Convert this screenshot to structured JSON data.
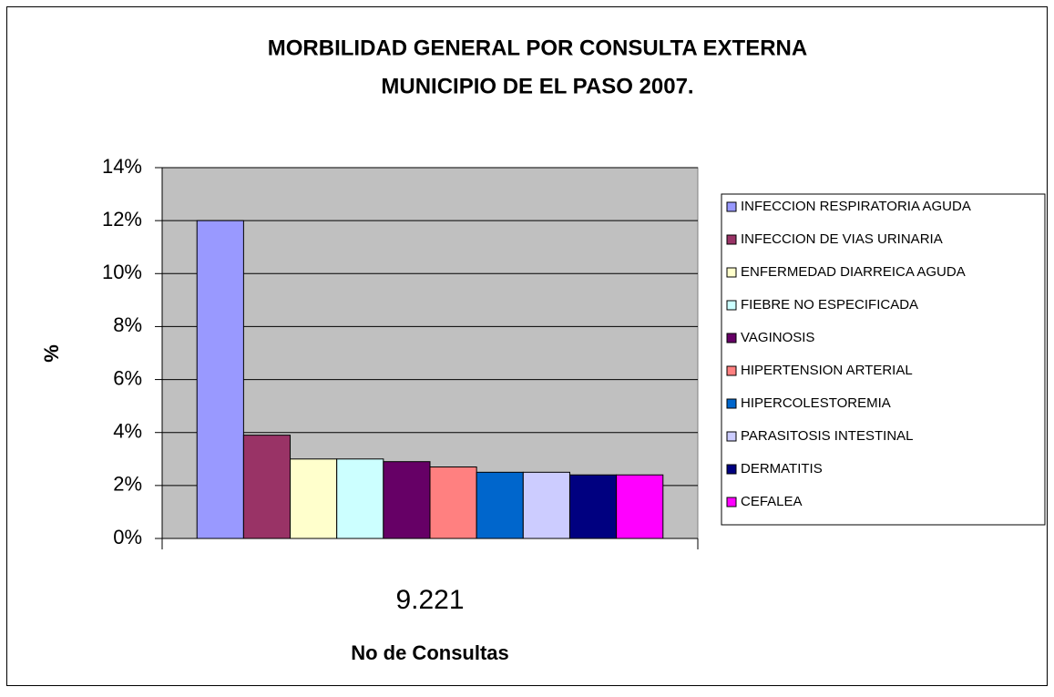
{
  "chart_data": {
    "type": "bar",
    "title": "MORBILIDAD GENERAL POR CONSULTA EXTERNA",
    "subtitle": "MUNICIPIO DE EL PASO 2007.",
    "y_label": "%",
    "x_label": "No de Consultas",
    "categories": [
      "9.221"
    ],
    "series": [
      {
        "name": "INFECCION RESPIRATORIA AGUDA",
        "color": "#9999ff",
        "values": [
          12.0
        ]
      },
      {
        "name": "INFECCION DE VIAS URINARIA",
        "color": "#993366",
        "values": [
          3.9
        ]
      },
      {
        "name": "ENFERMEDAD DIARREICA AGUDA",
        "color": "#ffffcc",
        "values": [
          3.0
        ]
      },
      {
        "name": "FIEBRE NO ESPECIFICADA",
        "color": "#ccffff",
        "values": [
          3.0
        ]
      },
      {
        "name": "VAGINOSIS",
        "color": "#660066",
        "values": [
          2.9
        ]
      },
      {
        "name": "HIPERTENSION ARTERIAL",
        "color": "#ff8080",
        "values": [
          2.7
        ]
      },
      {
        "name": "HIPERCOLESTOREMIA",
        "color": "#0066cc",
        "values": [
          2.5
        ]
      },
      {
        "name": "PARASITOSIS INTESTINAL",
        "color": "#ccccff",
        "values": [
          2.5
        ]
      },
      {
        "name": "DERMATITIS",
        "color": "#000080",
        "values": [
          2.4
        ]
      },
      {
        "name": "CEFALEA",
        "color": "#ff00ff",
        "values": [
          2.4
        ]
      }
    ],
    "ylim": [
      0,
      14
    ],
    "yticks": [
      {
        "value": 0,
        "label": "0%"
      },
      {
        "value": 2,
        "label": "2%"
      },
      {
        "value": 4,
        "label": "4%"
      },
      {
        "value": 6,
        "label": "6%"
      },
      {
        "value": 8,
        "label": "8%"
      },
      {
        "value": 10,
        "label": "10%"
      },
      {
        "value": 12,
        "label": "12%"
      },
      {
        "value": 14,
        "label": "14%"
      }
    ],
    "grid": true,
    "legend": "right"
  }
}
